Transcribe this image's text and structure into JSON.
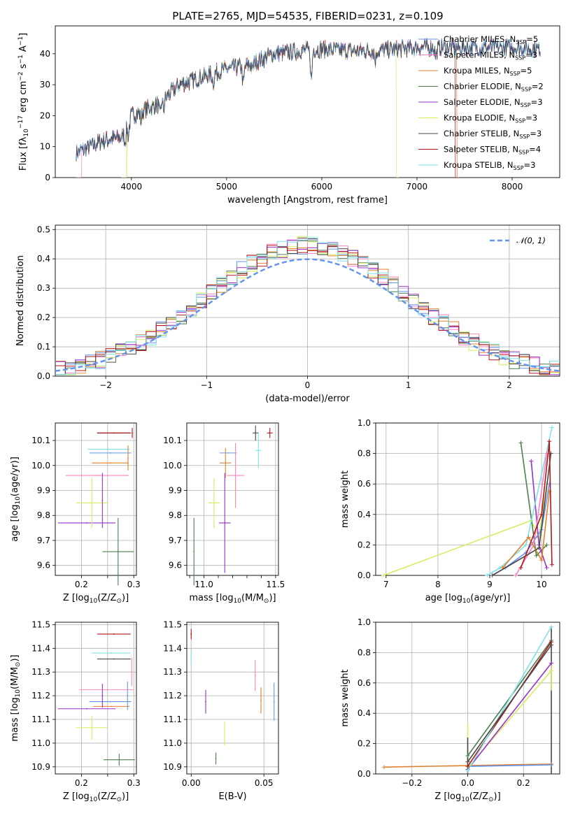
{
  "title": "PLATE=2765, MJD=54535, FIBERID=0231, z=0.109",
  "colors": {
    "cmiles": "#6495ed",
    "smiles": "#ff81c0",
    "kmiles": "#e0802c",
    "celodie": "#4f7f4f",
    "selodie": "#9932cc",
    "kelodie": "#d4ee5e",
    "cstelib": "#474747",
    "sstelib": "#b1181c",
    "kstelib": "#7de2e8",
    "gauss": "#6495ed",
    "grid": "#b0b0b0"
  },
  "models": [
    {
      "label": "Chabrier MILES, N",
      "sub": "SSP",
      "n": "=5",
      "color": "cmiles"
    },
    {
      "label": "Salpeter MILES, N",
      "sub": "SSP",
      "n": "=3",
      "color": "smiles"
    },
    {
      "label": "Kroupa MILES, N",
      "sub": "SSP",
      "n": "=5",
      "color": "kmiles"
    },
    {
      "label": "Chabrier ELODIE, N",
      "sub": "SSP",
      "n": "=2",
      "color": "celodie"
    },
    {
      "label": "Salpeter ELODIE, N",
      "sub": "SSP",
      "n": "=3",
      "color": "selodie"
    },
    {
      "label": "Kroupa ELODIE, N",
      "sub": "SSP",
      "n": "=3",
      "color": "kelodie"
    },
    {
      "label": "Chabrier STELIB, N",
      "sub": "SSP",
      "n": "=3",
      "color": "cstelib"
    },
    {
      "label": "Salpeter STELIB, N",
      "sub": "SSP",
      "n": "=4",
      "color": "sstelib"
    },
    {
      "label": "Kroupa STELIB, N",
      "sub": "SSP",
      "n": "=3",
      "color": "kstelib"
    }
  ],
  "chart_data": [
    {
      "id": "spectrum",
      "type": "line",
      "xlabel": "wavelength [Angstrom, rest frame]",
      "ylabel": "Flux [f",
      "ylabel_parts": [
        "λ",
        "10",
        "−17",
        " erg cm",
        "−2",
        " s",
        "−1",
        " A",
        "−1",
        "]"
      ],
      "xlim": [
        3200,
        8500
      ],
      "ylim": [
        0,
        49
      ],
      "xticks": [
        4000,
        5000,
        6000,
        7000,
        8000
      ],
      "yticks": [
        0,
        10,
        20,
        30,
        40
      ],
      "continuum_nodes": [
        [
          3420,
          8
        ],
        [
          3700,
          12
        ],
        [
          3900,
          13
        ],
        [
          4000,
          20
        ],
        [
          4300,
          24
        ],
        [
          4500,
          30
        ],
        [
          4800,
          33
        ],
        [
          5000,
          35
        ],
        [
          5200,
          36
        ],
        [
          5500,
          40
        ],
        [
          5800,
          41
        ],
        [
          6000,
          41.5
        ],
        [
          6300,
          41
        ],
        [
          6600,
          41
        ],
        [
          6800,
          41.5
        ],
        [
          7000,
          42
        ],
        [
          7300,
          42
        ],
        [
          7600,
          42
        ],
        [
          8000,
          42
        ],
        [
          8300,
          41.5
        ]
      ],
      "absorption_lines": [
        [
          3934,
          4
        ],
        [
          3969,
          4
        ],
        [
          4101,
          3
        ],
        [
          4300,
          4
        ],
        [
          4340,
          3
        ],
        [
          4861,
          3
        ],
        [
          5175,
          6
        ],
        [
          5270,
          2
        ],
        [
          5890,
          10
        ],
        [
          6563,
          3
        ],
        [
          7200,
          3
        ]
      ],
      "start_x": [
        3420,
        3480,
        3950,
        3420,
        3420,
        3950,
        3420,
        3420,
        3420
      ],
      "end_x": [
        8300,
        8300,
        7420,
        8300,
        8300,
        6780,
        8300,
        7400,
        8300
      ],
      "grid": false,
      "legend": "top-right"
    },
    {
      "id": "residuals",
      "type": "histogram",
      "xlabel": "(data-model)/error",
      "ylabel": "Normed distribution",
      "xlim": [
        -2.5,
        2.5
      ],
      "ylim": [
        0,
        0.515
      ],
      "xticks": [
        -2,
        -1,
        0,
        1,
        2
      ],
      "xticklabels": [
        "−2",
        "−1",
        "0",
        "1",
        "2"
      ],
      "yticks": [
        0.0,
        0.1,
        0.2,
        0.3,
        0.4,
        0.5
      ],
      "yticklabels": [
        "0.0",
        "0.1",
        "0.2",
        "0.3",
        "0.4",
        "0.5"
      ],
      "bin_width": 0.1,
      "legend_label": "𝒩(0, 1)",
      "legend": "top-right",
      "grid": true
    },
    {
      "id": "age_z",
      "type": "scatter",
      "xlabel": "Z [log",
      "xlabel_parts": [
        "10",
        "(Z/Z",
        "⊙",
        ")]"
      ],
      "ylabel": "age  [log",
      "ylabel_parts": [
        "10",
        "(age/yr)]"
      ],
      "xlim": [
        0.15,
        0.305
      ],
      "ylim": [
        9.56,
        10.17
      ],
      "xticks": [
        0.2,
        0.25,
        0.3
      ],
      "xticklabels": [
        "0.2",
        "",
        "0.3"
      ],
      "yticks": [
        9.6,
        9.7,
        9.8,
        9.9,
        10.0,
        10.1
      ],
      "yticklabels": [
        "9.6",
        "9.7",
        "9.8",
        "9.9",
        "10.0",
        "10.1"
      ],
      "points": [
        {
          "x": 0.255,
          "y": 10.05,
          "dx": 0.04,
          "dy": 0.0,
          "c": "cmiles"
        },
        {
          "x": 0.23,
          "y": 9.96,
          "dx": 0.06,
          "dy": 0.0,
          "c": "smiles"
        },
        {
          "x": 0.255,
          "y": 10.01,
          "dx": 0.035,
          "dy": 0.0,
          "c": "kmiles"
        },
        {
          "x": 0.27,
          "y": 9.655,
          "dx": 0.03,
          "dy": 0.135,
          "c": "celodie"
        },
        {
          "x": 0.21,
          "y": 9.77,
          "dx": 0.055,
          "dy": 0.0,
          "c": "selodie"
        },
        {
          "x": 0.22,
          "y": 9.85,
          "dx": 0.03,
          "dy": 0.1,
          "c": "kelodie"
        },
        {
          "x": 0.262,
          "y": 10.13,
          "dx": 0.032,
          "dy": 0.0,
          "c": "cstelib"
        },
        {
          "x": 0.262,
          "y": 10.13,
          "dx": 0.032,
          "dy": 0.0,
          "c": "sstelib"
        },
        {
          "x": 0.252,
          "y": 10.065,
          "dx": 0.04,
          "dy": 0.0,
          "c": "kstelib"
        },
        {
          "x": 0.24,
          "y": 9.86,
          "dx": 0.0,
          "dy": 0.11,
          "c": "selodie"
        },
        {
          "x": 0.289,
          "y": 10.03,
          "dx": 0.0,
          "dy": 0.05,
          "c": "kmiles"
        },
        {
          "x": 0.297,
          "y": 10.13,
          "dx": 0.0,
          "dy": 0.02,
          "c": "sstelib"
        }
      ],
      "grid": true
    },
    {
      "id": "age_mass",
      "type": "scatter",
      "xlabel": "mass [log",
      "xlabel_parts": [
        "10",
        "(M/M",
        "⊙",
        ")]"
      ],
      "xlim": [
        10.88,
        11.52
      ],
      "ylim": [
        9.56,
        10.17
      ],
      "xticks": [
        11.0,
        11.5
      ],
      "xticklabels": [
        "11.0",
        "11.5"
      ],
      "extra_xticks": [
        10.9,
        11.1,
        11.2,
        11.3,
        11.4
      ],
      "extra_xticklabels": [
        "",
        "",
        "",
        "",
        ""
      ],
      "yticks": [
        9.6,
        9.7,
        9.8,
        9.9,
        10.0,
        10.1
      ],
      "yticklabels": [
        "9.6",
        "9.7",
        "9.8",
        "9.9",
        "10.0",
        "10.1"
      ],
      "points": [
        {
          "x": 11.17,
          "y": 10.05,
          "dx": 0.06,
          "dy": 0.0,
          "c": "cmiles"
        },
        {
          "x": 11.22,
          "y": 9.96,
          "dx": 0.06,
          "dy": 0.13,
          "c": "smiles"
        },
        {
          "x": 11.15,
          "y": 10.01,
          "dx": 0.04,
          "dy": 0.06,
          "c": "kmiles"
        },
        {
          "x": 10.93,
          "y": 9.655,
          "dx": 0.0,
          "dy": 0.135,
          "c": "celodie"
        },
        {
          "x": 11.145,
          "y": 9.77,
          "dx": 0.04,
          "dy": 0.2,
          "c": "selodie"
        },
        {
          "x": 11.07,
          "y": 9.85,
          "dx": 0.04,
          "dy": 0.1,
          "c": "kelodie"
        },
        {
          "x": 11.36,
          "y": 10.13,
          "dx": 0.02,
          "dy": 0.03,
          "c": "cstelib"
        },
        {
          "x": 11.46,
          "y": 10.13,
          "dx": 0.02,
          "dy": 0.02,
          "c": "sstelib"
        },
        {
          "x": 11.38,
          "y": 10.06,
          "dx": 0.02,
          "dy": 0.07,
          "c": "kstelib"
        }
      ],
      "grid": true
    },
    {
      "id": "mw_age",
      "type": "line",
      "xlabel": "age  [log",
      "xlabel_parts": [
        "10",
        "(age/yr)]"
      ],
      "ylabel": "mass weight",
      "xlim": [
        6.8,
        10.35
      ],
      "ylim": [
        0,
        1.0
      ],
      "xticks": [
        7,
        8,
        9,
        10
      ],
      "xticklabels": [
        "7",
        "8",
        "9",
        "10"
      ],
      "yticks": [
        0,
        0.2,
        0.4,
        0.6,
        0.8,
        1.0
      ],
      "yticklabels": [
        "0.0",
        "0.2",
        "0.4",
        "0.6",
        "0.8",
        "1.0"
      ],
      "series": [
        {
          "c": "kelodie",
          "pts": [
            [
              6.95,
              0.0
            ],
            [
              9.8,
              0.36
            ],
            [
              9.95,
              0.25
            ],
            [
              10.1,
              0.6
            ]
          ]
        },
        {
          "c": "celodie",
          "pts": [
            [
              9.6,
              0.87
            ],
            [
              9.9,
              0.13
            ],
            [
              10.1,
              0.2
            ]
          ]
        },
        {
          "c": "selodie",
          "pts": [
            [
              9.8,
              0.75
            ],
            [
              9.95,
              0.2
            ],
            [
              10.1,
              0.05
            ]
          ]
        },
        {
          "c": "kstelib",
          "pts": [
            [
              8.95,
              0.0
            ],
            [
              9.2,
              0.05
            ],
            [
              9.7,
              0.2
            ],
            [
              10.2,
              0.97
            ]
          ]
        },
        {
          "c": "cmiles",
          "pts": [
            [
              9.3,
              0.05
            ],
            [
              9.7,
              0.15
            ],
            [
              10.0,
              0.3
            ],
            [
              10.15,
              0.6
            ]
          ]
        },
        {
          "c": "smiles",
          "pts": [
            [
              9.5,
              0.0
            ],
            [
              9.85,
              0.2
            ],
            [
              10.1,
              0.8
            ]
          ]
        },
        {
          "c": "kmiles",
          "pts": [
            [
              9.25,
              0.05
            ],
            [
              9.75,
              0.25
            ],
            [
              10.0,
              0.1
            ],
            [
              10.15,
              0.55
            ]
          ]
        },
        {
          "c": "cstelib",
          "pts": [
            [
              9.05,
              0.0
            ],
            [
              9.95,
              0.18
            ],
            [
              10.18,
              0.8
            ]
          ]
        },
        {
          "c": "sstelib",
          "pts": [
            [
              9.6,
              0.05
            ],
            [
              10.0,
              0.4
            ],
            [
              10.15,
              0.88
            ],
            [
              10.2,
              0.07
            ]
          ]
        }
      ],
      "grid": true
    },
    {
      "id": "mass_z",
      "type": "scatter",
      "xlabel": "Z [log",
      "xlabel_parts": [
        "10",
        "(Z/Z",
        "⊙",
        ")]"
      ],
      "ylabel": "mass [log",
      "ylabel_parts": [
        "10",
        "(M/M",
        "⊙",
        ")]"
      ],
      "xlim": [
        0.15,
        0.305
      ],
      "ylim": [
        10.87,
        11.51
      ],
      "xticks": [
        0.2,
        0.25,
        0.3
      ],
      "xticklabels": [
        "0.2",
        "",
        "0.3"
      ],
      "yticks": [
        10.9,
        11.0,
        11.1,
        11.2,
        11.3,
        11.4,
        11.5
      ],
      "yticklabels": [
        "10.9",
        "11.0",
        "11.1",
        "11.2",
        "11.3",
        "11.4",
        "11.5"
      ],
      "points": [
        {
          "x": 0.255,
          "y": 11.175,
          "dx": 0.04,
          "dy": 0.0,
          "c": "cmiles"
        },
        {
          "x": 0.248,
          "y": 11.225,
          "dx": 0.052,
          "dy": 0.0,
          "c": "smiles"
        },
        {
          "x": 0.257,
          "y": 11.155,
          "dx": 0.035,
          "dy": 0.0,
          "c": "kmiles"
        },
        {
          "x": 0.272,
          "y": 10.93,
          "dx": 0.03,
          "dy": 0.025,
          "c": "celodie"
        },
        {
          "x": 0.21,
          "y": 11.145,
          "dx": 0.055,
          "dy": 0.0,
          "c": "selodie"
        },
        {
          "x": 0.22,
          "y": 11.065,
          "dx": 0.03,
          "dy": 0.05,
          "c": "kelodie"
        },
        {
          "x": 0.262,
          "y": 11.355,
          "dx": 0.032,
          "dy": 0.0,
          "c": "cstelib"
        },
        {
          "x": 0.262,
          "y": 11.46,
          "dx": 0.032,
          "dy": 0.0,
          "c": "sstelib"
        },
        {
          "x": 0.257,
          "y": 11.38,
          "dx": 0.037,
          "dy": 0.0,
          "c": "kstelib"
        },
        {
          "x": 0.24,
          "y": 11.2,
          "dx": 0.0,
          "dy": 0.05,
          "c": "selodie"
        },
        {
          "x": 0.288,
          "y": 11.2,
          "dx": 0.0,
          "dy": 0.06,
          "c": "cmiles"
        },
        {
          "x": 0.296,
          "y": 11.3,
          "dx": 0.0,
          "dy": 0.06,
          "c": "smiles"
        }
      ],
      "grid": true
    },
    {
      "id": "mass_ebv",
      "type": "scatter",
      "xlabel": "E(B-V)",
      "xlim": [
        -0.003,
        0.06
      ],
      "ylim": [
        10.87,
        11.51
      ],
      "xticks": [
        0.0,
        0.05
      ],
      "xticklabels": [
        "0.00",
        "0.05"
      ],
      "yticks": [
        10.9,
        11.0,
        11.1,
        11.2,
        11.3,
        11.4,
        11.5
      ],
      "yticklabels": [
        "10.9",
        "11.0",
        "11.1",
        "11.2",
        "11.3",
        "11.4",
        "11.5"
      ],
      "points": [
        {
          "x": 0.057,
          "y": 11.175,
          "dx": 0.0,
          "dy": 0.08,
          "c": "cmiles"
        },
        {
          "x": 0.044,
          "y": 11.285,
          "dx": 0.0,
          "dy": 0.065,
          "c": "smiles"
        },
        {
          "x": 0.048,
          "y": 11.18,
          "dx": 0.0,
          "dy": 0.055,
          "c": "kmiles"
        },
        {
          "x": 0.017,
          "y": 10.935,
          "dx": 0.0,
          "dy": 0.025,
          "c": "celodie"
        },
        {
          "x": 0.01,
          "y": 11.175,
          "dx": 0.0,
          "dy": 0.05,
          "c": "selodie"
        },
        {
          "x": 0.023,
          "y": 11.04,
          "dx": 0.0,
          "dy": 0.05,
          "c": "kelodie"
        },
        {
          "x": 0.0,
          "y": 11.36,
          "dx": 0.0,
          "dy": 0.03,
          "c": "kstelib"
        },
        {
          "x": 0.0,
          "y": 11.46,
          "dx": 0.0,
          "dy": 0.022,
          "c": "sstelib"
        }
      ],
      "grid": true
    },
    {
      "id": "mw_z",
      "type": "line",
      "xlabel": "Z [log",
      "xlabel_parts": [
        "10",
        "(Z/Z",
        "⊙",
        ")]"
      ],
      "ylabel": "mass weight",
      "xlim": [
        -0.33,
        0.33
      ],
      "ylim": [
        0,
        1.0
      ],
      "xticks": [
        -0.2,
        0.0,
        0.2
      ],
      "xticklabels": [
        "−0.2",
        "0.0",
        "0.2"
      ],
      "yticks": [
        0,
        0.2,
        0.4,
        0.6,
        0.8,
        1.0
      ],
      "yticklabels": [
        "0.0",
        "0.2",
        "0.4",
        "0.6",
        "0.8",
        "1.0"
      ],
      "series": [
        {
          "c": "kmiles",
          "pts": [
            [
              -0.3,
              0.045
            ],
            [
              0.3,
              0.065
            ]
          ]
        },
        {
          "c": "cmiles",
          "pts": [
            [
              0.0,
              0.05
            ],
            [
              0.3,
              0.06
            ]
          ]
        },
        {
          "c": "kelodie",
          "pts": [
            [
              0.0,
              0.04
            ],
            [
              0.3,
              0.68
            ]
          ]
        },
        {
          "c": "celodie",
          "pts": [
            [
              0.0,
              0.12
            ],
            [
              0.3,
              0.88
            ]
          ]
        },
        {
          "c": "selodie",
          "pts": [
            [
              0.0,
              0.03
            ],
            [
              0.3,
              0.73
            ]
          ]
        },
        {
          "c": "sstelib",
          "pts": [
            [
              0.0,
              0.05
            ],
            [
              0.3,
              0.87
            ]
          ]
        },
        {
          "c": "kstelib",
          "pts": [
            [
              0.0,
              0.02
            ],
            [
              0.3,
              0.97
            ]
          ]
        },
        {
          "c": "cstelib",
          "pts": [
            [
              0.0,
              0.08
            ],
            [
              0.3,
              0.85
            ]
          ]
        }
      ],
      "vbars": [
        {
          "x": 0.0,
          "y0": 0.0,
          "y1": 0.33,
          "c": "kelodie"
        },
        {
          "x": 0.0,
          "y0": 0.0,
          "y1": 0.24,
          "c": "cstelib"
        },
        {
          "x": 0.3,
          "y0": 0.0,
          "y1": 0.97,
          "c": "cstelib"
        },
        {
          "x": 0.3,
          "y0": 0.55,
          "y1": 0.72,
          "c": "kelodie"
        }
      ],
      "grid": true
    }
  ]
}
